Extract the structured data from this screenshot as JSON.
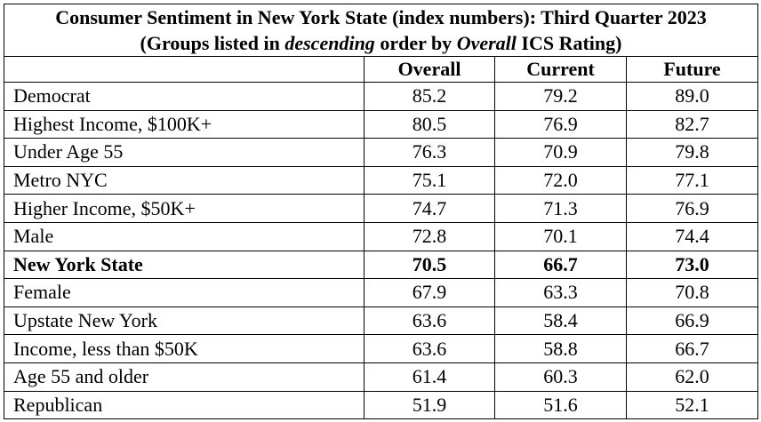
{
  "title": "Consumer Sentiment in New York State (index numbers):  Third Quarter 2023",
  "subtitle": {
    "part1": "(Groups listed in ",
    "part2_italic": "descending",
    "part3": " order by ",
    "part4_italic": "Overall",
    "part5": " ICS Rating)"
  },
  "columns": [
    "Overall",
    "Current",
    "Future"
  ],
  "rows": [
    {
      "group": "Democrat",
      "overall": "85.2",
      "current": "79.2",
      "future": "89.0"
    },
    {
      "group": "Highest Income, $100K+",
      "overall": "80.5",
      "current": "76.9",
      "future": "82.7"
    },
    {
      "group": "Under Age 55",
      "overall": "76.3",
      "current": "70.9",
      "future": "79.8"
    },
    {
      "group": "Metro NYC",
      "overall": "75.1",
      "current": "72.0",
      "future": "77.1"
    },
    {
      "group": "Higher Income, $50K+",
      "overall": "74.7",
      "current": "71.3",
      "future": "76.9"
    },
    {
      "group": "Male",
      "overall": "72.8",
      "current": "70.1",
      "future": "74.4"
    },
    {
      "group": "New York State",
      "overall": "70.5",
      "current": "66.7",
      "future": "73.0"
    },
    {
      "group": "Female",
      "overall": "67.9",
      "current": "63.3",
      "future": "70.8"
    },
    {
      "group": "Upstate New York",
      "overall": "63.6",
      "current": "58.4",
      "future": "66.9"
    },
    {
      "group": "Income, less than $50K",
      "overall": "63.6",
      "current": "58.8",
      "future": "66.7"
    },
    {
      "group": "Age 55 and older",
      "overall": "61.4",
      "current": "60.3",
      "future": "62.0"
    },
    {
      "group": "Republican",
      "overall": "51.9",
      "current": "51.6",
      "future": "52.1"
    }
  ]
}
